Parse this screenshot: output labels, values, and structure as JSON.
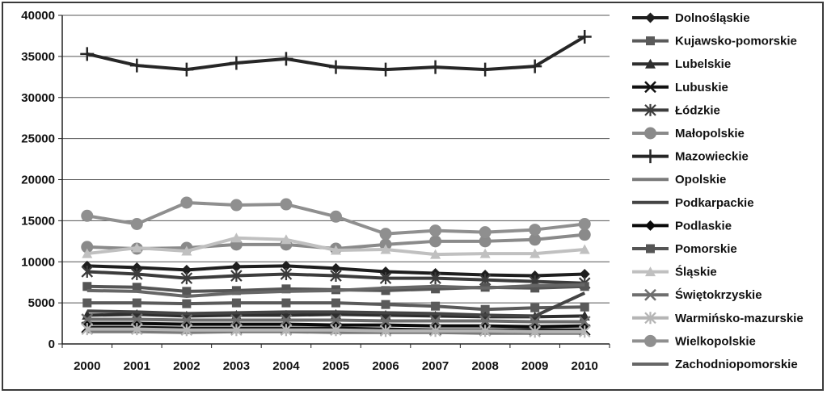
{
  "chart_data": {
    "type": "line",
    "title": "",
    "xlabel": "",
    "ylabel": "",
    "x": [
      "2000",
      "2001",
      "2002",
      "2003",
      "2004",
      "2005",
      "2006",
      "2007",
      "2008",
      "2009",
      "2010"
    ],
    "ylim": [
      0,
      40000
    ],
    "yticks": [
      0,
      5000,
      10000,
      15000,
      20000,
      25000,
      30000,
      35000,
      40000
    ],
    "grid": true,
    "legend_position": "right",
    "series": [
      {
        "name": "Dolnośląskie",
        "color": "#1e1e1e",
        "marker": "diamond",
        "values": [
          9500,
          9300,
          9000,
          9400,
          9500,
          9200,
          8800,
          8600,
          8400,
          8300,
          8500
        ]
      },
      {
        "name": "Kujawsko-pomorskie",
        "color": "#5a5a5a",
        "marker": "square",
        "values": [
          5000,
          5000,
          4900,
          5000,
          5000,
          5000,
          4800,
          4600,
          4200,
          4400,
          4500
        ]
      },
      {
        "name": "Lubelskie",
        "color": "#2e2e2e",
        "marker": "triangle",
        "values": [
          3500,
          3600,
          3400,
          3500,
          3500,
          3600,
          3500,
          3400,
          3300,
          3300,
          3400
        ]
      },
      {
        "name": "Lubuskie",
        "color": "#111111",
        "marker": "x",
        "values": [
          2000,
          2000,
          1900,
          1900,
          1900,
          1900,
          1800,
          1700,
          1700,
          1700,
          1700
        ]
      },
      {
        "name": "Łódzkie",
        "color": "#3c3c3c",
        "marker": "star",
        "values": [
          8800,
          8500,
          8000,
          8300,
          8500,
          8300,
          8000,
          8000,
          7800,
          7600,
          7400
        ]
      },
      {
        "name": "Małopolskie",
        "color": "#8a8a8a",
        "marker": "circle",
        "values": [
          11800,
          11600,
          11700,
          12100,
          12100,
          11600,
          12100,
          12500,
          12500,
          12700,
          13300
        ]
      },
      {
        "name": "Mazowieckie",
        "color": "#262626",
        "marker": "plus",
        "values": [
          35300,
          33900,
          33400,
          34200,
          34700,
          33700,
          33400,
          33700,
          33400,
          33800,
          37400
        ]
      },
      {
        "name": "Opolskie",
        "color": "#7a7a7a",
        "marker": "none",
        "values": [
          1500,
          1500,
          1400,
          1500,
          1500,
          1400,
          1400,
          1400,
          1300,
          1300,
          1300
        ]
      },
      {
        "name": "Podkarpackie",
        "color": "#444444",
        "marker": "none",
        "values": [
          4000,
          3900,
          3700,
          3800,
          3900,
          3900,
          3800,
          3700,
          3500,
          3400,
          6200
        ]
      },
      {
        "name": "Podlaskie",
        "color": "#0a0a0a",
        "marker": "diamond",
        "values": [
          2500,
          2500,
          2400,
          2400,
          2400,
          2300,
          2300,
          2200,
          2200,
          2100,
          2200
        ]
      },
      {
        "name": "Pomorskie",
        "color": "#555555",
        "marker": "square",
        "values": [
          7000,
          6900,
          6400,
          6500,
          6700,
          6600,
          6500,
          6700,
          6900,
          6800,
          7000
        ]
      },
      {
        "name": "Śląskie",
        "color": "#c0c0c0",
        "marker": "triangle",
        "values": [
          11000,
          11700,
          11300,
          12900,
          12700,
          11400,
          11500,
          10900,
          11000,
          11000,
          11500
        ]
      },
      {
        "name": "Świętokrzyskie",
        "color": "#6e6e6e",
        "marker": "x",
        "values": [
          3000,
          3000,
          2900,
          2900,
          2900,
          2900,
          2800,
          2800,
          2800,
          2700,
          2700
        ]
      },
      {
        "name": "Warmińsko-mazurskie",
        "color": "#b5b5b5",
        "marker": "star",
        "values": [
          1800,
          1800,
          1700,
          1700,
          1700,
          1700,
          1600,
          1600,
          1600,
          1500,
          1500
        ]
      },
      {
        "name": "Wielkopolskie",
        "color": "#8f8f8f",
        "marker": "circle",
        "values": [
          15600,
          14600,
          17200,
          16900,
          17000,
          15500,
          13400,
          13800,
          13600,
          13900,
          14600
        ]
      },
      {
        "name": "Zachodniopomorskie",
        "color": "#666666",
        "marker": "none",
        "values": [
          6500,
          6400,
          5800,
          6200,
          6400,
          6500,
          6800,
          7000,
          6800,
          7100,
          7200
        ]
      }
    ]
  }
}
